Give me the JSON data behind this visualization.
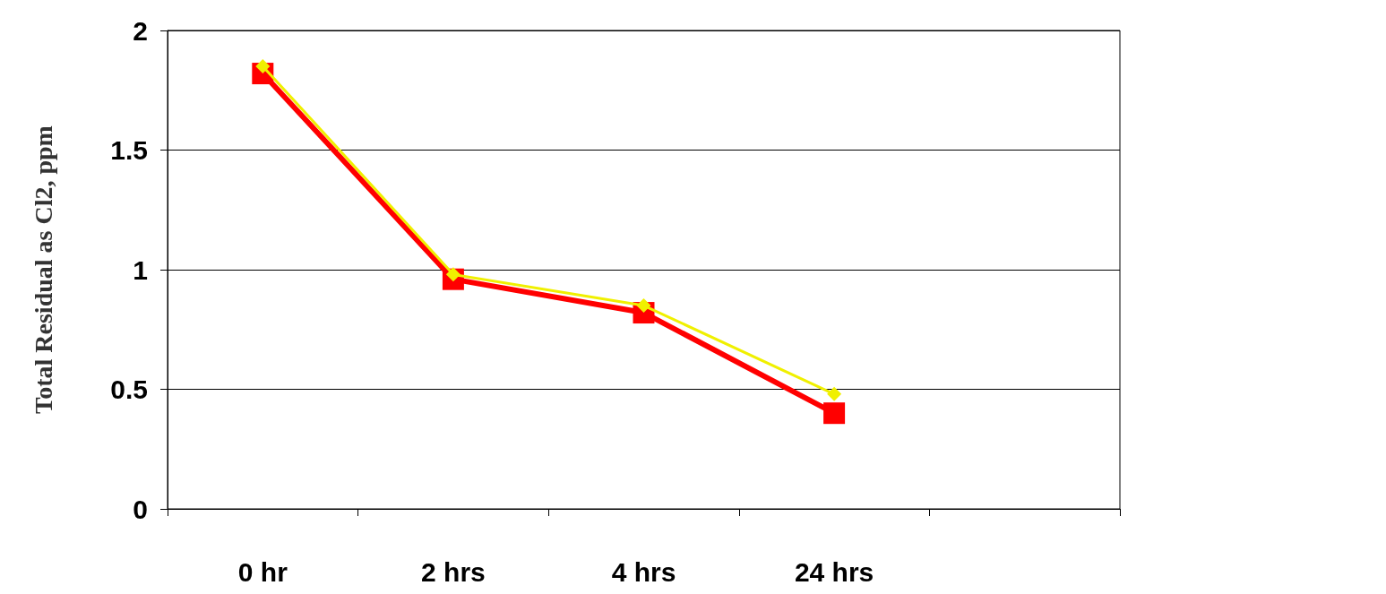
{
  "chart_data": {
    "type": "line",
    "ylabel": "Total Residual as Cl2, ppm",
    "categories": [
      "0 hr",
      "2 hrs",
      "4 hrs",
      "24 hrs",
      null
    ],
    "series": [
      {
        "color": "#f0f000",
        "marker": "diamond",
        "values": [
          1.85,
          0.98,
          0.85,
          0.48,
          null
        ]
      },
      {
        "color": "#ff0000",
        "marker": "square",
        "values": [
          1.82,
          0.96,
          0.82,
          0.4,
          null
        ]
      }
    ],
    "ylim": [
      0,
      2
    ],
    "yticks": [
      0,
      0.5,
      1,
      1.5,
      2
    ],
    "grid": "y"
  }
}
